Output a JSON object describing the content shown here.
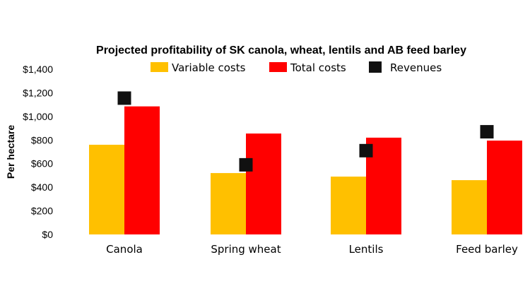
{
  "chart_data": {
    "type": "bar",
    "title": "Projected profitability of SK canola, wheat, lentils and AB feed barley",
    "ylabel": "Per hectare",
    "xlabel": "",
    "categories": [
      "Canola",
      "Spring wheat",
      "Lentils",
      "Feed barley"
    ],
    "series": [
      {
        "name": "Variable costs",
        "kind": "bar",
        "color": "#FFC000",
        "values": [
          760,
          520,
          490,
          460
        ]
      },
      {
        "name": "Total costs",
        "kind": "bar",
        "color": "#FF0000",
        "values": [
          1085,
          855,
          820,
          795
        ]
      },
      {
        "name": "Revenues",
        "kind": "marker",
        "color": "#111111",
        "values": [
          1155,
          590,
          710,
          870
        ]
      }
    ],
    "ylim": [
      0,
      1400
    ],
    "yticks": [
      "$0",
      "$200",
      "$400",
      "$600",
      "$800",
      "$1,000",
      "$1,200",
      "$1,400"
    ],
    "grid": false,
    "legend": "top"
  }
}
